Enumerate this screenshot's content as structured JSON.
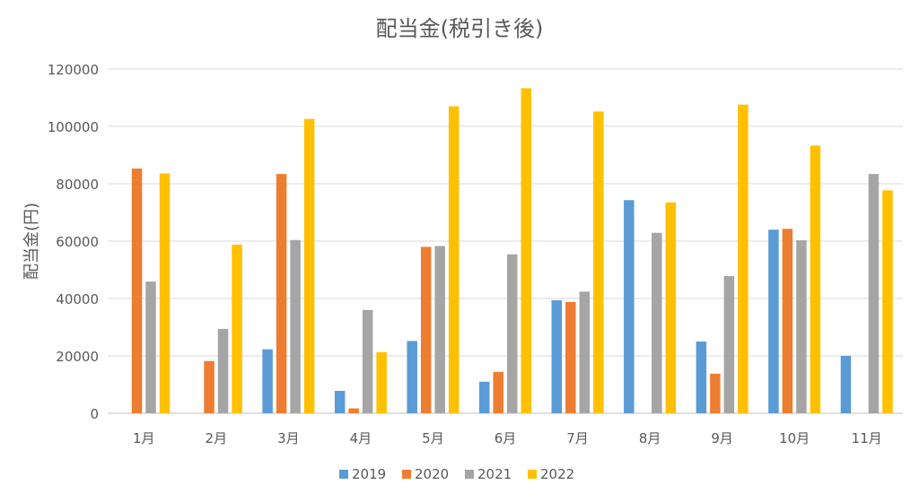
{
  "chart_data": {
    "type": "bar",
    "title": "配当金(税引き後)",
    "xlabel": "",
    "ylabel": "配当金(円)",
    "categories": [
      "1月",
      "2月",
      "3月",
      "4月",
      "5月",
      "6月",
      "7月",
      "8月",
      "9月",
      "10月",
      "11月"
    ],
    "series": [
      {
        "name": "2019",
        "color": "#5b9bd5",
        "values": [
          0,
          0,
          22300,
          7800,
          25200,
          11000,
          39400,
          74300,
          25000,
          64000,
          20000
        ]
      },
      {
        "name": "2020",
        "color": "#ed7d31",
        "values": [
          85300,
          18200,
          83400,
          1700,
          58000,
          14400,
          38800,
          0,
          13800,
          64300,
          0
        ]
      },
      {
        "name": "2021",
        "color": "#a5a5a5",
        "values": [
          45900,
          29400,
          60400,
          36000,
          58300,
          55400,
          42400,
          62900,
          47800,
          60300,
          83400
        ]
      },
      {
        "name": "2022",
        "color": "#ffc000",
        "values": [
          83600,
          58800,
          102600,
          21300,
          107000,
          113300,
          105200,
          73500,
          107600,
          93300,
          77700
        ]
      }
    ],
    "ylim": [
      0,
      120000
    ],
    "yticks": [
      "0",
      "20000",
      "40000",
      "60000",
      "80000",
      "100000",
      "120000"
    ],
    "grid": true,
    "legend_position": "bottom"
  }
}
